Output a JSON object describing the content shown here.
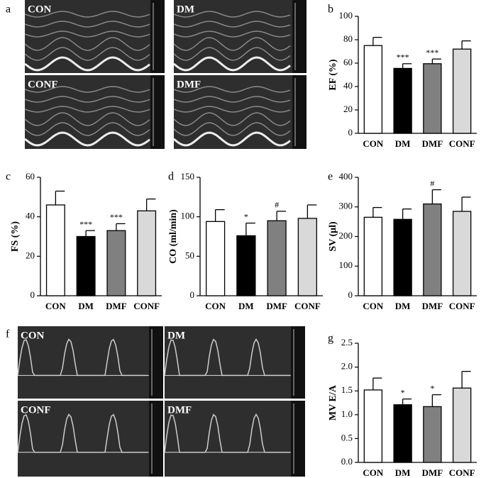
{
  "panel_labels": [
    "a",
    "b",
    "c",
    "d",
    "e",
    "f",
    "g"
  ],
  "mmode_labels": [
    "CON",
    "DM",
    "CONF",
    "DMF"
  ],
  "doppler_labels": [
    "CON",
    "DM",
    "CONF",
    "DMF"
  ],
  "chart_data": [
    {
      "type": "bar",
      "ylabel": "EF (%)",
      "categories": [
        "CON",
        "DM",
        "DMF",
        "CONF"
      ],
      "values": [
        75,
        55.5,
        59.5,
        72
      ],
      "errors": [
        7,
        4,
        4,
        7
      ],
      "colors": [
        "#ffffff",
        "#000000",
        "#808080",
        "#d9d9d9"
      ],
      "annotations": [
        null,
        "***",
        "***",
        null
      ],
      "ylim": [
        0,
        100
      ],
      "yticks": [
        0,
        20,
        40,
        60,
        80,
        100
      ]
    },
    {
      "type": "bar",
      "ylabel": "FS (%)",
      "categories": [
        "CON",
        "DM",
        "DMF",
        "CONF"
      ],
      "values": [
        46,
        30,
        33,
        43
      ],
      "errors": [
        7,
        3,
        3.5,
        6
      ],
      "colors": [
        "#ffffff",
        "#000000",
        "#808080",
        "#d9d9d9"
      ],
      "annotations": [
        null,
        "***",
        "***",
        null
      ],
      "ylim": [
        0,
        60
      ],
      "yticks": [
        0,
        20,
        40,
        60
      ]
    },
    {
      "type": "bar",
      "ylabel": "CO (ml/min)",
      "categories": [
        "CON",
        "DM",
        "DMF",
        "CONF"
      ],
      "values": [
        94,
        76,
        95,
        98
      ],
      "errors": [
        15,
        16,
        12,
        17
      ],
      "colors": [
        "#ffffff",
        "#000000",
        "#808080",
        "#d9d9d9"
      ],
      "annotations": [
        null,
        "*",
        "#",
        null
      ],
      "ylim": [
        0,
        150
      ],
      "yticks": [
        0,
        50,
        100,
        150
      ]
    },
    {
      "type": "bar",
      "ylabel": "SV (μl)",
      "categories": [
        "CON",
        "DM",
        "DMF",
        "CONF"
      ],
      "values": [
        265,
        258,
        310,
        285
      ],
      "errors": [
        33,
        35,
        48,
        48
      ],
      "colors": [
        "#ffffff",
        "#000000",
        "#808080",
        "#d9d9d9"
      ],
      "annotations": [
        null,
        null,
        "#",
        null
      ],
      "ylim": [
        0,
        400
      ],
      "yticks": [
        0,
        100,
        200,
        300,
        400
      ]
    },
    {
      "type": "bar",
      "ylabel": "MV E/A",
      "categories": [
        "CON",
        "DM",
        "DMF",
        "CONF"
      ],
      "values": [
        1.52,
        1.21,
        1.17,
        1.56
      ],
      "errors": [
        0.25,
        0.12,
        0.25,
        0.35
      ],
      "colors": [
        "#ffffff",
        "#000000",
        "#808080",
        "#d9d9d9"
      ],
      "annotations": [
        null,
        "*",
        "*",
        null
      ],
      "ylim": [
        0,
        2.5
      ],
      "yticks": [
        {
          "value": 0,
          "label": "0.0"
        },
        0.5,
        {
          "value": 1,
          "label": "1.0"
        },
        1.5,
        {
          "value": 2,
          "label": "2.0"
        },
        2.5
      ]
    }
  ]
}
